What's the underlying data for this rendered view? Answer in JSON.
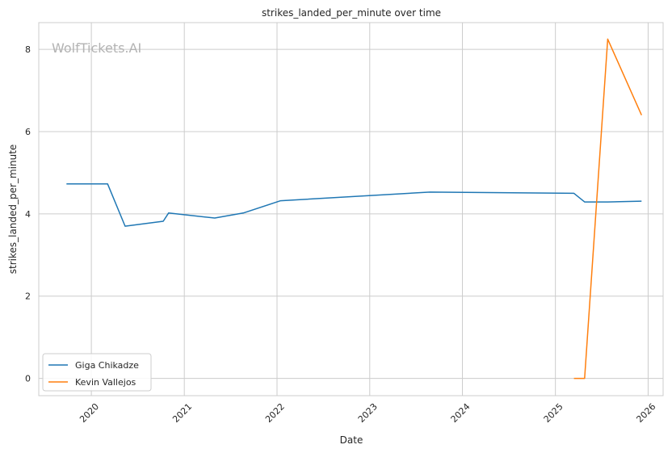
{
  "watermark": "WolfTickets.AI",
  "chart_data": {
    "type": "line",
    "title": "strikes_landed_per_minute over time",
    "xlabel": "Date",
    "ylabel": "strikes_landed_per_minute",
    "x_ticks": [
      "2020",
      "2021",
      "2022",
      "2023",
      "2024",
      "2025",
      "2026"
    ],
    "y_ticks": [
      "0",
      "2",
      "4",
      "6",
      "8"
    ],
    "xlim": [
      "2019-06-08",
      "2026-03-01"
    ],
    "ylim": [
      -0.42,
      8.65
    ],
    "grid": true,
    "legend_position": "lower-left",
    "series": [
      {
        "name": "Giga Chikadze",
        "color": "#1f77b4",
        "points": [
          {
            "x": "2019-09-25",
            "y": 4.73
          },
          {
            "x": "2020-03-05",
            "y": 4.73
          },
          {
            "x": "2020-05-13",
            "y": 3.7
          },
          {
            "x": "2020-10-10",
            "y": 3.82
          },
          {
            "x": "2020-10-31",
            "y": 4.02
          },
          {
            "x": "2021-05-01",
            "y": 3.9
          },
          {
            "x": "2021-08-21",
            "y": 4.02
          },
          {
            "x": "2022-01-15",
            "y": 4.32
          },
          {
            "x": "2023-08-26",
            "y": 4.53
          },
          {
            "x": "2025-03-15",
            "y": 4.5
          },
          {
            "x": "2025-04-26",
            "y": 4.29
          },
          {
            "x": "2025-07-26",
            "y": 4.29
          },
          {
            "x": "2025-12-06",
            "y": 4.31
          }
        ]
      },
      {
        "name": "Kevin Vallejos",
        "color": "#ff7f0e",
        "points": [
          {
            "x": "2025-03-15",
            "y": 0.0
          },
          {
            "x": "2025-04-26",
            "y": 0.0
          },
          {
            "x": "2025-07-26",
            "y": 8.25
          },
          {
            "x": "2025-12-06",
            "y": 6.4
          }
        ]
      }
    ]
  }
}
